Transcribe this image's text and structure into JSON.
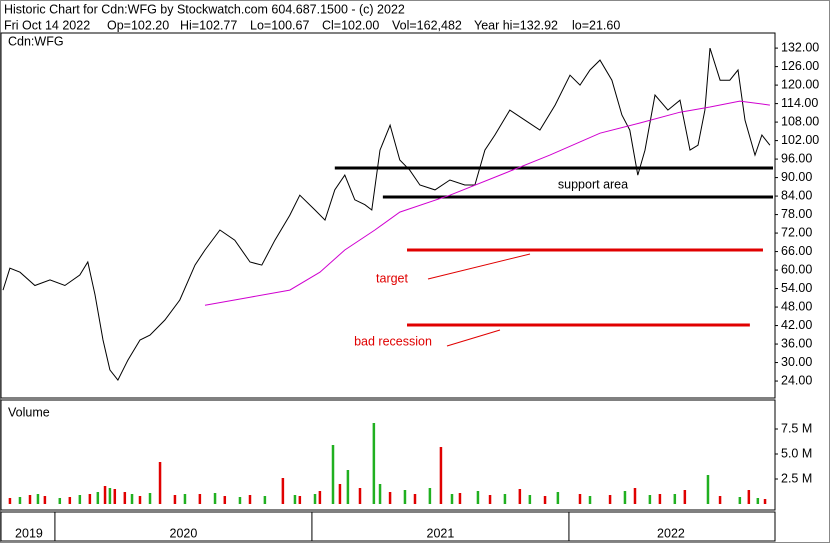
{
  "chart_data": [
    {
      "type": "line",
      "title": "Historic Chart for Cdn:WFG by Stockwatch.com 604.687.1500 - (c) 2022",
      "subtitle_items": [
        "Fri Oct 14 2022",
        "Op=102.20",
        "Hi=102.77",
        "Lo=100.67",
        "Cl=102.00",
        "Vol=162,482",
        "Year hi=132.92",
        "lo=21.60"
      ],
      "symbol": "Cdn:WFG",
      "xlim": [
        2019.798,
        2022.794
      ],
      "ylim": [
        18.5,
        136.9
      ],
      "yticks": [
        {
          "value": 24,
          "label": "24.00"
        },
        {
          "value": 30,
          "label": "30.00"
        },
        {
          "value": 36,
          "label": "36.00"
        },
        {
          "value": 42,
          "label": "42.00"
        },
        {
          "value": 48,
          "label": "48.00"
        },
        {
          "value": 54,
          "label": "54.00"
        },
        {
          "value": 60,
          "label": "60.00"
        },
        {
          "value": 66,
          "label": "66.00"
        },
        {
          "value": 72,
          "label": "72.00"
        },
        {
          "value": 78,
          "label": "78.00"
        },
        {
          "value": 84,
          "label": "84.00"
        },
        {
          "value": 90,
          "label": "90.00"
        },
        {
          "value": 96,
          "label": "96.00"
        },
        {
          "value": 102,
          "label": "102.00"
        },
        {
          "value": 108,
          "label": "108.00"
        },
        {
          "value": 114,
          "label": "114.00"
        },
        {
          "value": 120,
          "label": "120.00"
        },
        {
          "value": 126,
          "label": "126.00"
        },
        {
          "value": 132,
          "label": "132.00"
        }
      ],
      "series": [
        {
          "color": "#000000",
          "x": [
            2019.798,
            2019.825,
            2019.864,
            2019.922,
            2019.981,
            2020.039,
            2020.097,
            2020.128,
            2020.156,
            2020.187,
            2020.214,
            2020.245,
            2020.284,
            2020.331,
            2020.37,
            2020.428,
            2020.486,
            2020.545,
            2020.584,
            2020.642,
            2020.7,
            2020.759,
            2020.805,
            2020.856,
            2020.914,
            2020.953,
            2021.012,
            2021.051,
            2021.089,
            2021.128,
            2021.167,
            2021.206,
            2021.233,
            2021.265,
            2021.304,
            2021.342,
            2021.381,
            2021.42,
            2021.479,
            2021.537,
            2021.595,
            2021.634,
            2021.673,
            2021.712,
            2021.77,
            2021.829,
            2021.887,
            2021.946,
            2022.004,
            2022.043,
            2022.082,
            2022.121,
            2022.167,
            2022.206,
            2022.237,
            2022.268,
            2022.296,
            2022.335,
            2022.385,
            2022.432,
            2022.471,
            2022.502,
            2022.529,
            2022.549,
            2022.588,
            2022.626,
            2022.658,
            2022.685,
            2022.724,
            2022.751,
            2022.782
          ],
          "values": [
            53.5,
            60.6,
            59.3,
            55,
            56.8,
            55,
            58.4,
            62.6,
            52,
            37.3,
            27.6,
            24.3,
            30.8,
            37.3,
            38.9,
            43.8,
            50.3,
            61.6,
            66.5,
            73,
            69.7,
            62.6,
            61.6,
            69.7,
            77.8,
            84.3,
            79.5,
            76.2,
            86,
            90.8,
            82.8,
            81.2,
            79.5,
            98.9,
            107,
            95.7,
            92.4,
            87.6,
            86,
            89.2,
            87.6,
            87.6,
            98.9,
            103.8,
            111.9,
            108.6,
            105.4,
            113.5,
            123.2,
            120,
            124.9,
            128.1,
            121.6,
            110.3,
            105.4,
            90.8,
            98.9,
            116.8,
            111.9,
            115.1,
            98.9,
            100.5,
            111.9,
            132,
            121.6,
            121.6,
            124.9,
            108.6,
            97.3,
            103.8,
            100.5
          ]
        },
        {
          "color": "#d000d0",
          "x": [
            2020.584,
            2020.759,
            2020.914,
            2021.031,
            2021.128,
            2021.245,
            2021.342,
            2021.537,
            2021.732,
            2021.926,
            2022.121,
            2022.276,
            2022.432,
            2022.549,
            2022.665,
            2022.782
          ],
          "values": [
            48.6,
            51.2,
            53.5,
            59.3,
            66.5,
            73,
            78.8,
            84.3,
            90.8,
            97.3,
            104.4,
            107.7,
            111.2,
            112.9,
            114.8,
            113.5
          ]
        }
      ],
      "levels": [
        {
          "value": 93.1,
          "color": "#000000",
          "from": 2021.089,
          "to": 2022.794
        },
        {
          "value": 83.7,
          "color": "#000000",
          "from": 2021.276,
          "to": 2022.794
        },
        {
          "value": 66.5,
          "color": "#e00000",
          "from": 2021.37,
          "to": 2022.755
        },
        {
          "value": 42.2,
          "color": "#e00000",
          "from": 2021.37,
          "to": 2022.704
        }
      ],
      "annotations": [
        "support area",
        "target",
        "bad recession"
      ]
    },
    {
      "type": "bar",
      "label": "Volume",
      "xlim": [
        2019.798,
        2022.794
      ],
      "ylim": [
        -500000,
        10400000
      ],
      "yticks": [
        {
          "value": 2500000,
          "label": "2.5 M"
        },
        {
          "value": 5000000,
          "label": "5.0 M"
        },
        {
          "value": 7500000,
          "label": "7.5 M"
        }
      ],
      "xticks": [
        2020,
        2021,
        2022
      ],
      "x_periods": [
        "2019",
        "2020",
        "2021",
        "2022"
      ],
      "series": [
        {
          "color": "#e00000",
          "x": [
            2019.825,
            2019.903,
            2019.961,
            2020.058,
            2020.136,
            2020.195,
            2020.233,
            2020.272,
            2020.331,
            2020.409,
            2020.467,
            2020.564,
            2020.661,
            2020.759,
            2020.887,
            2020.953,
            2021.031,
            2021.109,
            2021.187,
            2021.304,
            2021.401,
            2021.502,
            2021.576,
            2021.693,
            2021.809,
            2021.907,
            2022.043,
            2022.16,
            2022.257,
            2022.354,
            2022.451,
            2022.588,
            2022.7,
            2022.763
          ],
          "values": [
            600000,
            900000,
            800000,
            700000,
            1000000,
            1800000,
            1500000,
            1200000,
            800000,
            4200000,
            900000,
            1000000,
            800000,
            900000,
            2600000,
            800000,
            1300000,
            2000000,
            1600000,
            1200000,
            1000000,
            5700000,
            1100000,
            900000,
            1500000,
            800000,
            1000000,
            900000,
            1600000,
            1000000,
            1400000,
            800000,
            1400000,
            500000
          ]
        },
        {
          "color": "#20b020",
          "x": [
            2019.864,
            2019.934,
            2020.019,
            2020.097,
            2020.167,
            2020.214,
            2020.3,
            2020.37,
            2020.506,
            2020.623,
            2020.72,
            2020.817,
            2020.934,
            2021.012,
            2021.082,
            2021.14,
            2021.241,
            2021.265,
            2021.362,
            2021.459,
            2021.545,
            2021.646,
            2021.751,
            2021.848,
            2021.957,
            2022.082,
            2022.218,
            2022.315,
            2022.412,
            2022.541,
            2022.665,
            2022.735
          ],
          "values": [
            700000,
            1000000,
            600000,
            900000,
            1200000,
            1600000,
            1000000,
            1100000,
            1000000,
            1100000,
            700000,
            800000,
            900000,
            1000000,
            5900000,
            3400000,
            8100000,
            2000000,
            1400000,
            1600000,
            1000000,
            1300000,
            1000000,
            900000,
            1200000,
            800000,
            1300000,
            900000,
            1000000,
            2900000,
            700000,
            600000
          ]
        }
      ]
    }
  ]
}
